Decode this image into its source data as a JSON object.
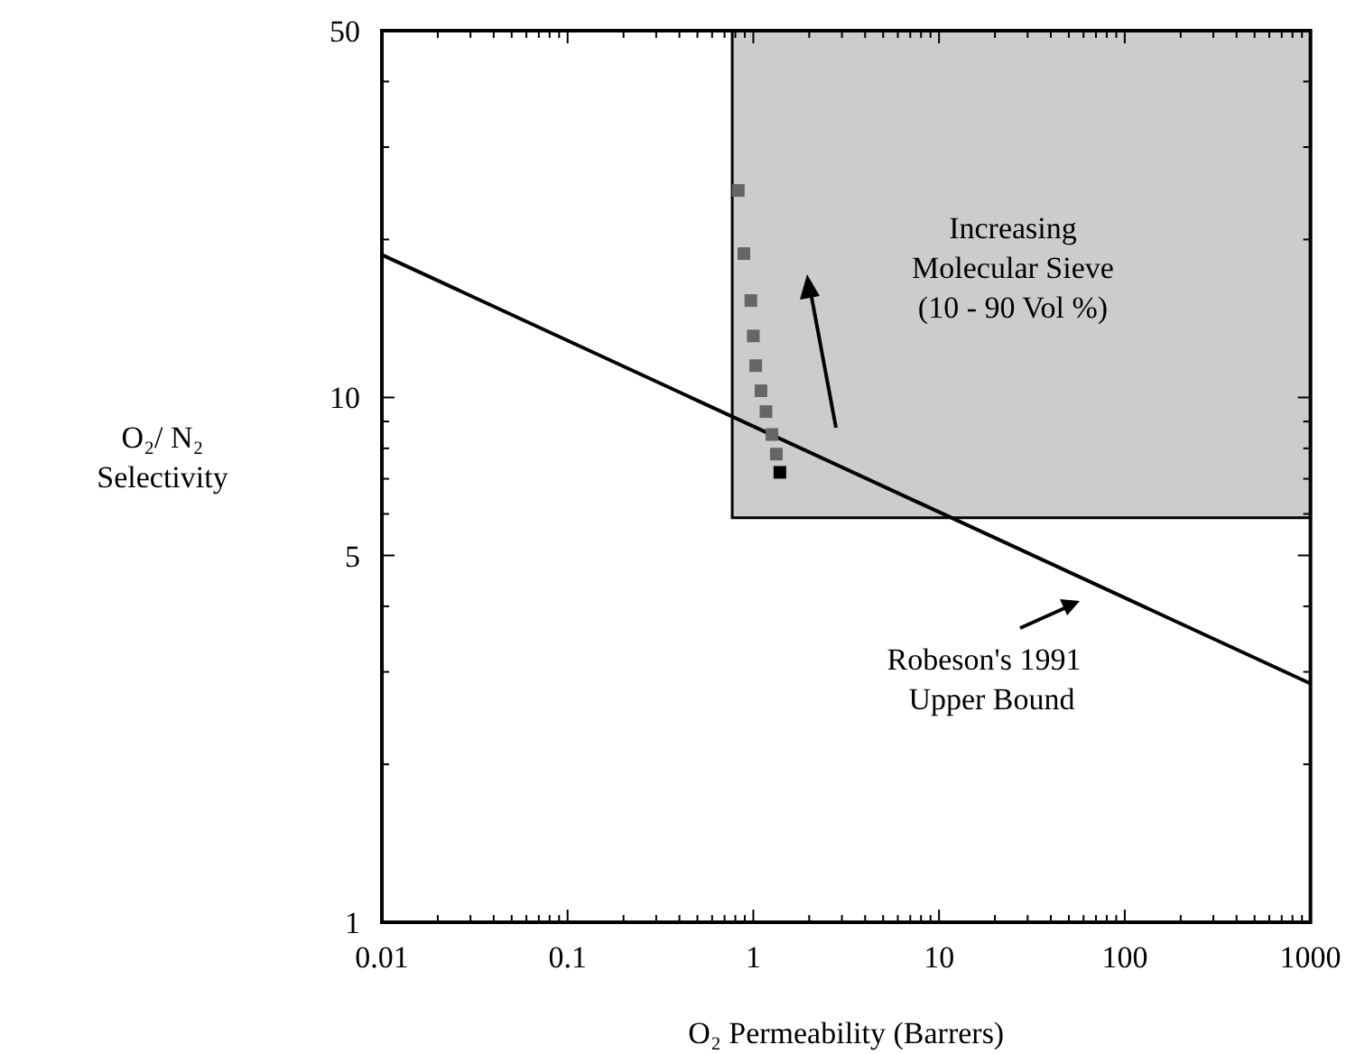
{
  "chart_data": {
    "type": "scatter",
    "xlabel": "O₂ Permeability (Barrers)",
    "ylabel": "O₂/ N₂\nSelectivity",
    "log": "xy",
    "grid": false,
    "xlim": [
      0.01,
      1000
    ],
    "ylim": [
      1,
      50
    ],
    "xticks": [
      0.01,
      {
        "value": 0.02,
        "label": null
      },
      {
        "value": 0.03,
        "label": null
      },
      {
        "value": 0.04,
        "label": null
      },
      {
        "value": 0.05,
        "label": null
      },
      {
        "value": 0.06,
        "label": null
      },
      {
        "value": 0.07,
        "label": null
      },
      {
        "value": 0.08,
        "label": null
      },
      {
        "value": 0.09,
        "label": null
      },
      0.1,
      {
        "value": 0.2,
        "label": null
      },
      {
        "value": 0.3,
        "label": null
      },
      {
        "value": 0.4,
        "label": null
      },
      {
        "value": 0.5,
        "label": null
      },
      {
        "value": 0.6,
        "label": null
      },
      {
        "value": 0.7,
        "label": null
      },
      {
        "value": 0.8,
        "label": null
      },
      {
        "value": 0.9,
        "label": null
      },
      1,
      {
        "value": 2,
        "label": null
      },
      {
        "value": 3,
        "label": null
      },
      {
        "value": 4,
        "label": null
      },
      {
        "value": 5,
        "label": null
      },
      {
        "value": 6,
        "label": null
      },
      {
        "value": 7,
        "label": null
      },
      {
        "value": 8,
        "label": null
      },
      {
        "value": 9,
        "label": null
      },
      10,
      {
        "value": 20,
        "label": null
      },
      {
        "value": 30,
        "label": null
      },
      {
        "value": 40,
        "label": null
      },
      {
        "value": 50,
        "label": null
      },
      {
        "value": 60,
        "label": null
      },
      {
        "value": 70,
        "label": null
      },
      {
        "value": 80,
        "label": null
      },
      {
        "value": 90,
        "label": null
      },
      100,
      {
        "value": 200,
        "label": null
      },
      {
        "value": 300,
        "label": null
      },
      {
        "value": 400,
        "label": null
      },
      {
        "value": 500,
        "label": null
      },
      {
        "value": 600,
        "label": null
      },
      {
        "value": 700,
        "label": null
      },
      {
        "value": 800,
        "label": null
      },
      {
        "value": 900,
        "label": null
      },
      1000
    ],
    "yticks": [
      1,
      {
        "value": 2,
        "label": null
      },
      {
        "value": 3,
        "label": null
      },
      {
        "value": 4,
        "label": null
      },
      5,
      {
        "value": 6,
        "label": null
      },
      {
        "value": 7,
        "label": null
      },
      {
        "value": 8,
        "label": null
      },
      {
        "value": 9,
        "label": null
      },
      10,
      {
        "value": 20,
        "label": null
      },
      {
        "value": 30,
        "label": null
      },
      {
        "value": 40,
        "label": null
      },
      50
    ],
    "series": [
      {
        "type": "area",
        "color": "#cccccc",
        "x": [
          0.77,
          0.77,
          1000,
          1000
        ],
        "values": [
          5.9,
          50,
          50,
          5.9
        ]
      },
      {
        "type": "line",
        "color": "#000000",
        "x": [
          0.01,
          1000
        ],
        "values": [
          18.7,
          2.85
        ]
      },
      {
        "marker": "square",
        "x": [
          0.83,
          0.89,
          0.97,
          1.0,
          1.03,
          1.1,
          1.17,
          1.26,
          1.33,
          1.39
        ],
        "values": [
          24.8,
          18.8,
          15.3,
          13.1,
          11.5,
          10.3,
          9.4,
          8.5,
          7.8,
          7.2
        ],
        "colors": [
          "#666666",
          "#666666",
          "#666666",
          "#666666",
          "#666666",
          "#666666",
          "#666666",
          "#666666",
          "#666666",
          "#000000"
        ]
      }
    ],
    "annotations": [
      "Increasing\nMolecular Sieve\n(10 - 90 Vol %)",
      "Robeson's 1991\n  Upper Bound"
    ]
  }
}
